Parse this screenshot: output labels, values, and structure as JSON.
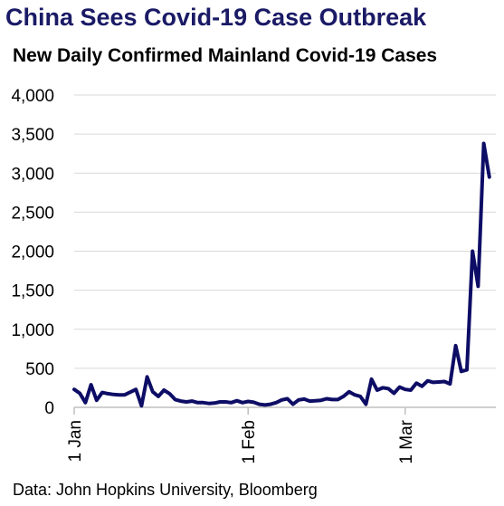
{
  "title": "China Sees Covid-19 Case Outbreak",
  "subtitle": "New Daily Confirmed Mainland Covid-19 Cases",
  "source": "Data: John Hopkins University, Bloomberg",
  "chart_data": {
    "type": "line",
    "title": "China Sees Covid-19 Case Outbreak",
    "subtitle": "New Daily Confirmed Mainland Covid-19 Cases",
    "xlabel": "",
    "ylabel": "",
    "ylim": [
      0,
      4000
    ],
    "yticks": [
      0,
      500,
      1000,
      1500,
      2000,
      2500,
      3000,
      3500,
      4000
    ],
    "ytick_labels": [
      "0",
      "500",
      "1,000",
      "1,500",
      "2,000",
      "2,500",
      "3,000",
      "3,500",
      "4,000"
    ],
    "xticks": [
      {
        "label": "1 Jan",
        "day": 0
      },
      {
        "label": "1 Feb",
        "day": 31
      },
      {
        "label": "1 Mar",
        "day": 59
      }
    ],
    "grid": "horizontal",
    "line_color": "#0d0d66",
    "series": [
      {
        "values": [
          230,
          180,
          60,
          290,
          90,
          190,
          175,
          165,
          160,
          160,
          195,
          230,
          20,
          390,
          200,
          140,
          220,
          175,
          100,
          80,
          70,
          80,
          60,
          60,
          50,
          55,
          70,
          70,
          60,
          85,
          60,
          75,
          65,
          40,
          30,
          40,
          60,
          95,
          110,
          40,
          95,
          105,
          80,
          85,
          90,
          110,
          100,
          100,
          140,
          200,
          160,
          140,
          40,
          360,
          220,
          250,
          240,
          180,
          260,
          230,
          220,
          310,
          270,
          340,
          320,
          325,
          330,
          300,
          790,
          460,
          480,
          2000,
          1550,
          3380,
          2950
        ]
      }
    ]
  }
}
